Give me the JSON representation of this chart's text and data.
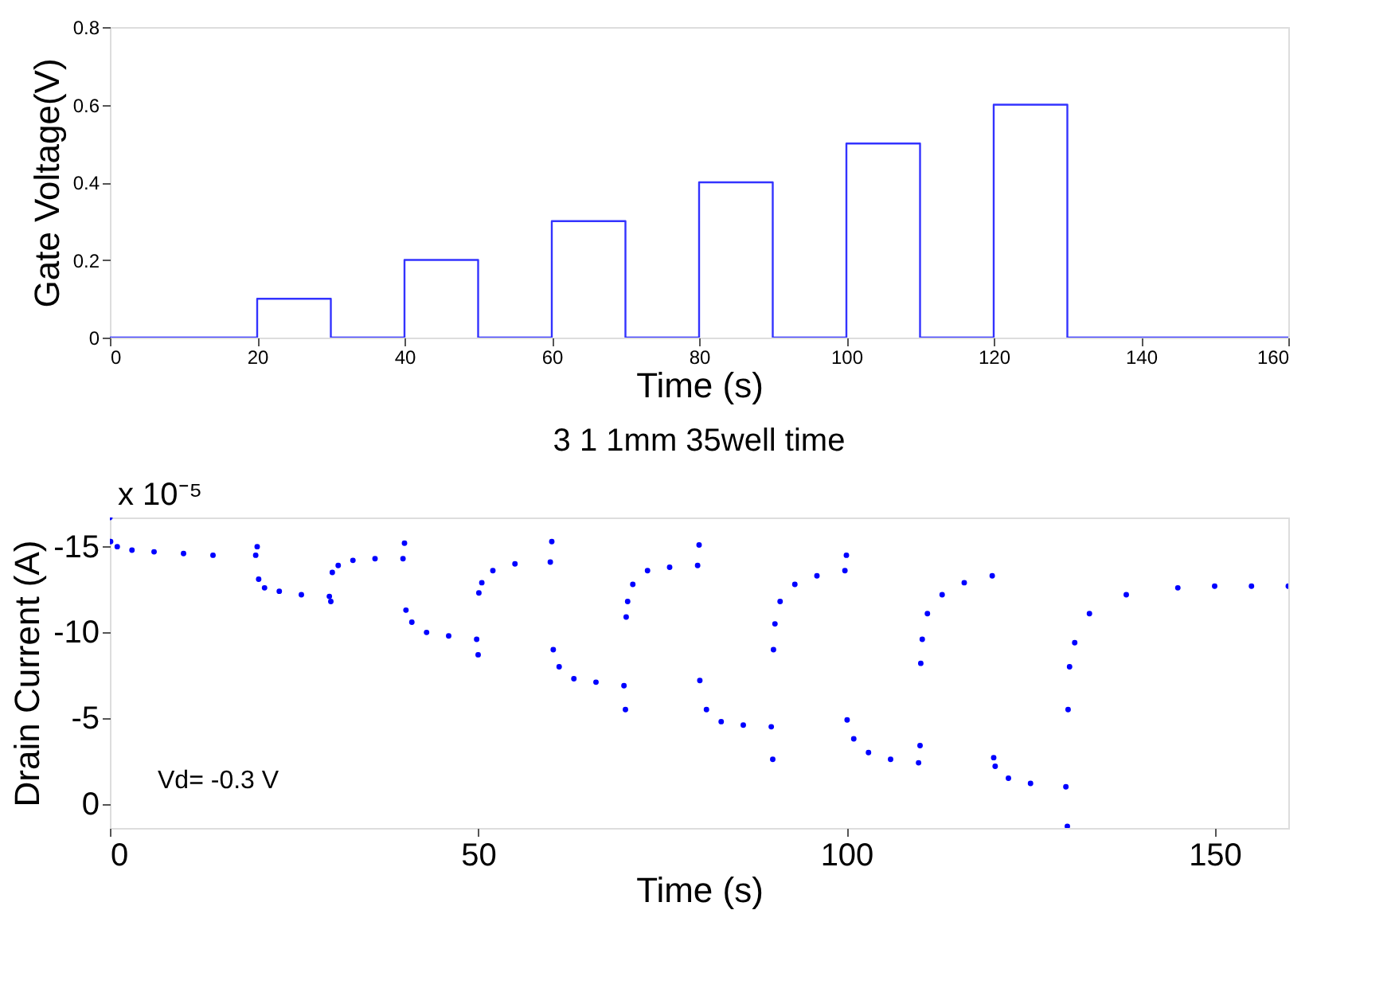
{
  "chart_data": [
    {
      "type": "step",
      "xlabel": "Time (s)",
      "ylabel": "Gate Voltage(V)",
      "xlim": [
        0,
        160
      ],
      "xticks": [
        0,
        20,
        40,
        60,
        80,
        100,
        120,
        140,
        160
      ],
      "ylim": [
        0,
        0.8
      ],
      "yticks": [
        0,
        0.2,
        0.4,
        0.6,
        0.8
      ],
      "grid": false,
      "line_style": "solid",
      "series": [
        {
          "color": "#3333ff",
          "x": [
            0,
            20,
            30,
            40,
            50,
            60,
            70,
            80,
            90,
            100,
            110,
            120,
            130,
            160
          ],
          "values": [
            0,
            0.1,
            0,
            0.2,
            0,
            0.3,
            0,
            0.4,
            0,
            0.5,
            0,
            0.6,
            0,
            0
          ]
        }
      ]
    },
    {
      "type": "scatter",
      "title": "3 1 1mm 35well time",
      "xlabel": "Time (s)",
      "ylabel": "Drain Current (A)",
      "xlim": [
        0,
        160
      ],
      "xticks": [
        0,
        50,
        100,
        150
      ],
      "ylim": [
        1.4,
        -16.7
      ],
      "yticks": [
        -15,
        -10,
        -5,
        0
      ],
      "grid": false,
      "marker": "circle",
      "annotations": [
        "x 10⁻⁵",
        "Vd= -0.3 V"
      ],
      "series": [
        {
          "color": "#0000ff",
          "x": [
            0,
            0.1,
            1,
            3,
            6,
            10,
            14,
            19.8,
            20,
            20.2,
            21,
            23,
            26,
            29.8,
            30,
            30.2,
            31,
            33,
            36,
            39.8,
            40,
            40.2,
            41,
            43,
            46,
            49.8,
            50,
            50.1,
            50.5,
            52,
            55,
            59.8,
            60,
            60.2,
            61,
            63,
            66,
            69.8,
            70,
            70.1,
            70.3,
            71,
            73,
            76,
            79.8,
            80,
            80.1,
            81,
            83,
            86,
            89.8,
            90,
            90.1,
            90.3,
            91,
            93,
            96,
            99.8,
            100,
            100.1,
            101,
            103,
            106,
            109.8,
            110,
            110.1,
            110.3,
            111,
            113,
            116,
            119.8,
            120,
            120.2,
            122,
            125,
            129.8,
            130,
            130.1,
            130.3,
            131,
            133,
            138,
            145,
            150,
            155,
            160
          ],
          "values": [
            -16.7,
            -15.3,
            -15.0,
            -14.8,
            -14.7,
            -14.6,
            -14.5,
            -14.5,
            -15.0,
            -13.1,
            -12.6,
            -12.4,
            -12.2,
            -12.1,
            -11.8,
            -13.5,
            -13.9,
            -14.2,
            -14.3,
            -14.3,
            -15.2,
            -11.3,
            -10.6,
            -10.0,
            -9.8,
            -9.6,
            -8.7,
            -12.3,
            -12.9,
            -13.6,
            -14.0,
            -14.1,
            -15.3,
            -9.0,
            -8.0,
            -7.3,
            -7.1,
            -6.9,
            -5.5,
            -10.9,
            -11.8,
            -12.8,
            -13.6,
            -13.8,
            -13.9,
            -15.1,
            -7.2,
            -5.5,
            -4.8,
            -4.6,
            -4.5,
            -2.6,
            -9.0,
            -10.5,
            -11.8,
            -12.8,
            -13.3,
            -13.6,
            -14.5,
            -4.9,
            -3.8,
            -3.0,
            -2.6,
            -2.4,
            -3.4,
            -8.2,
            -9.6,
            -11.1,
            -12.2,
            -12.9,
            -13.3,
            -2.7,
            -2.2,
            -1.5,
            -1.2,
            -1.0,
            1.3,
            -5.5,
            -8.0,
            -9.4,
            -11.1,
            -12.2,
            -12.6,
            -12.7,
            -12.7,
            -12.7
          ]
        }
      ]
    }
  ]
}
